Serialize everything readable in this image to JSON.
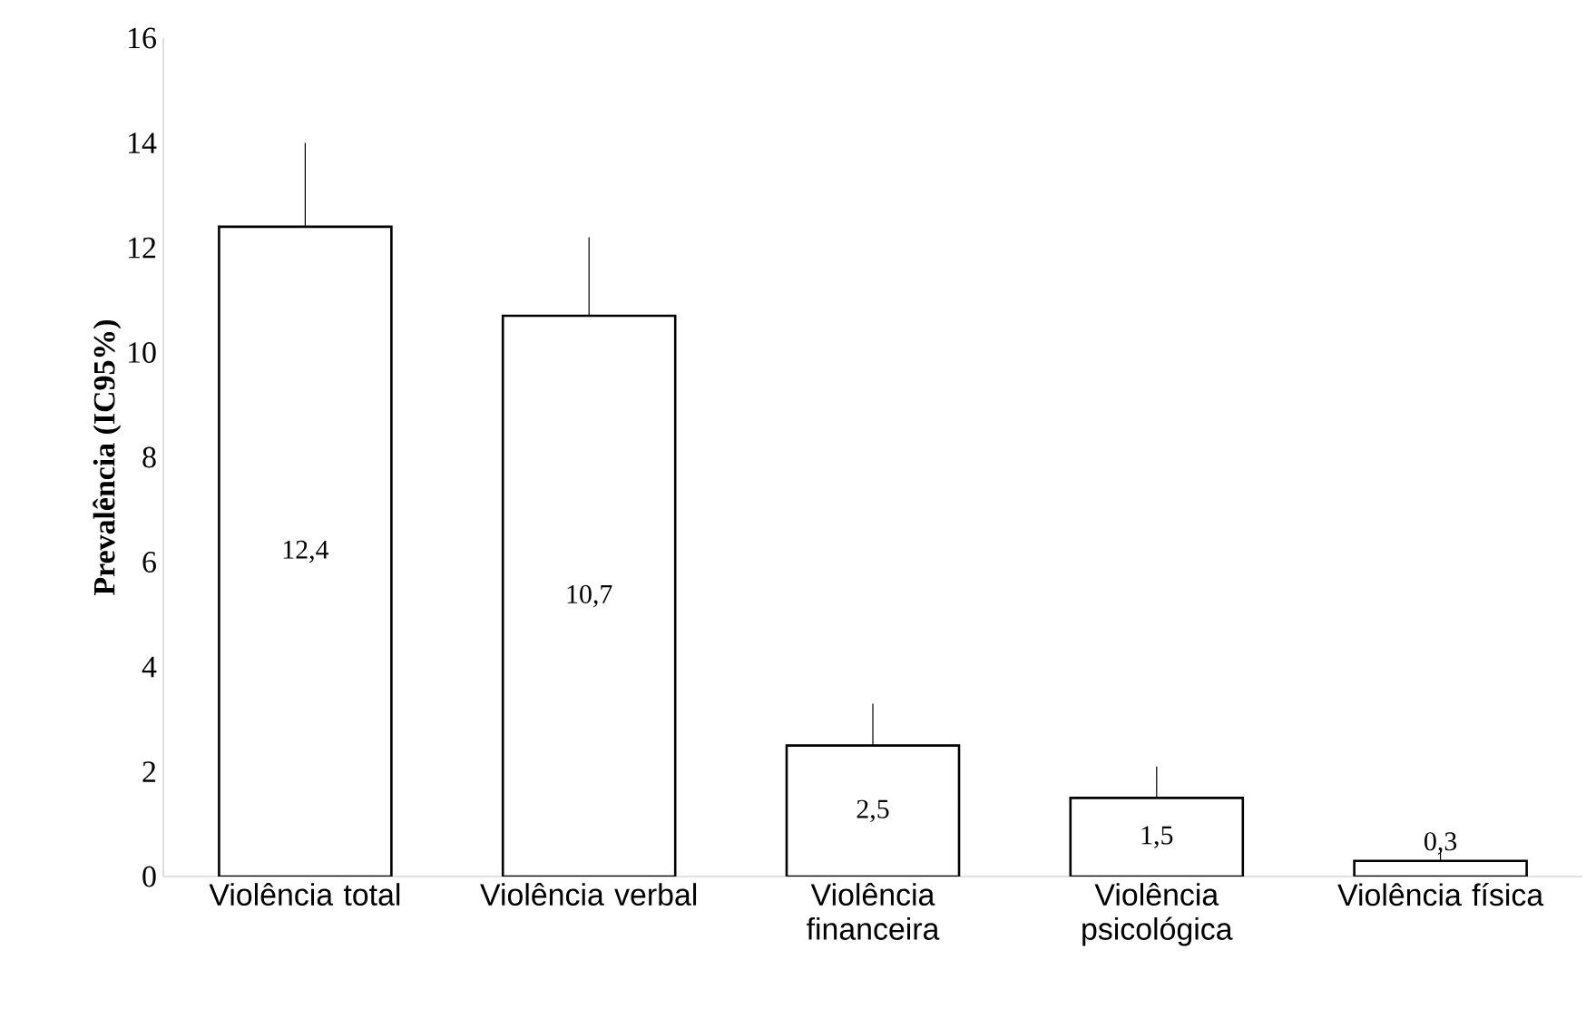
{
  "chart_data": {
    "type": "bar",
    "ylabel": "Prevalência (IC95%)",
    "categories": [
      "Violência total",
      "Violência verbal",
      "Violência financeira",
      "Violência psicológica",
      "Violência física"
    ],
    "values": [
      12.4,
      10.7,
      2.5,
      1.5,
      0.3
    ],
    "errors": [
      1.6,
      1.5,
      0.8,
      0.6,
      0.25
    ],
    "value_labels": [
      "12,4",
      "10,7",
      "2,5",
      "1,5",
      "0,3"
    ],
    "color": "#ffffff",
    "ylim": [
      0,
      16
    ],
    "yticks": [
      0,
      2,
      4,
      6,
      8,
      10,
      12,
      14,
      16
    ],
    "grid": false
  }
}
